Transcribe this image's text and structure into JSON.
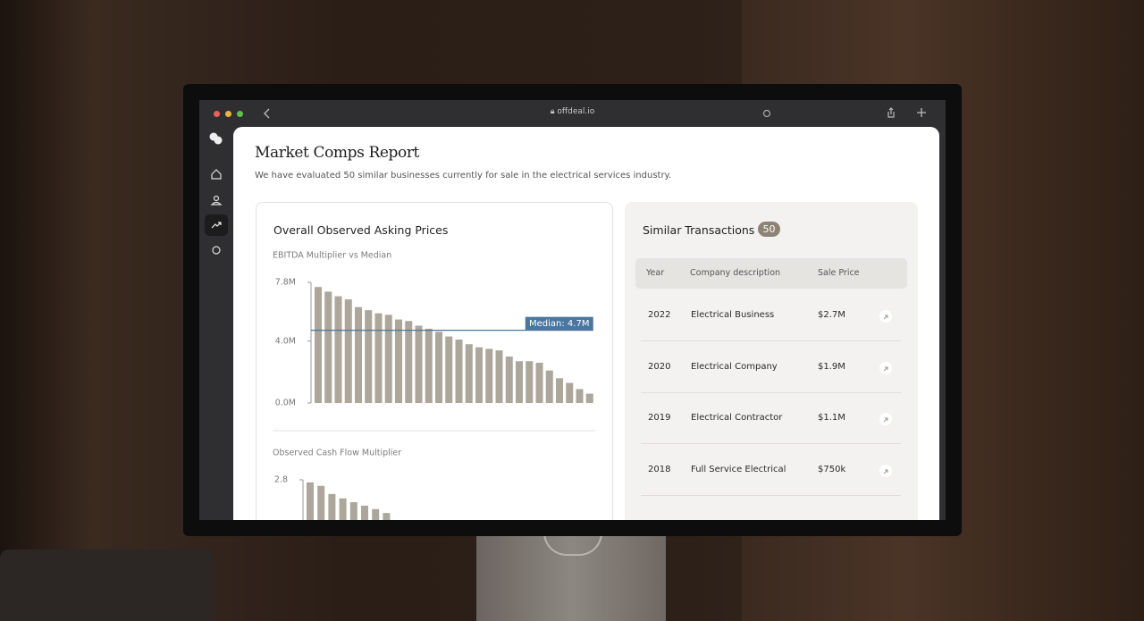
{
  "browser": {
    "url": "offdeal.io"
  },
  "report": {
    "title": "Market Comps Report",
    "subtitle": "We have evaluated 50 similar businesses currently for sale in the electrical services industry."
  },
  "asking_prices": {
    "title": "Overall Observed Asking Prices"
  },
  "chart_data": [
    {
      "type": "bar",
      "title": "EBITDA Multiplier vs Median",
      "color": "#aca69b",
      "values": [
        7.5,
        7.2,
        6.9,
        6.7,
        6.2,
        6.0,
        5.8,
        5.7,
        5.4,
        5.3,
        5.0,
        4.8,
        4.6,
        4.3,
        4.1,
        3.8,
        3.6,
        3.5,
        3.4,
        3.0,
        2.7,
        2.7,
        2.6,
        2.1,
        1.6,
        1.3,
        0.9,
        0.6
      ],
      "ylim": [
        0,
        7.8
      ],
      "yticks": [
        {
          "value": 0,
          "label": "0.0M"
        },
        {
          "value": 4.0,
          "label": "4.0M"
        },
        {
          "value": 7.8,
          "label": "7.8M"
        }
      ],
      "median": {
        "value": 4.7,
        "label": "Median: 4.7M",
        "color": "#4a76a0"
      }
    },
    {
      "type": "bar",
      "title": "Observed Cash Flow Multiplier",
      "color": "#aca69b",
      "values": [
        2.74,
        2.66,
        2.47,
        2.37,
        2.28,
        2.2,
        2.12,
        2.03
      ],
      "ylim": [
        0,
        2.8
      ],
      "yticks": [
        2.8
      ]
    }
  ],
  "transactions": {
    "title": "Similar Transactions",
    "count": 50,
    "columns": [
      "Year",
      "Company description",
      "Sale Price"
    ],
    "rows": [
      [
        "2022",
        "Electrical Business",
        "$2.7M"
      ],
      [
        "2020",
        "Electrical Company",
        "$1.9M"
      ],
      [
        "2019",
        "Electrical Contractor",
        "$1.1M"
      ],
      [
        "2018",
        "Full Service Electrical",
        "$750k"
      ]
    ]
  }
}
